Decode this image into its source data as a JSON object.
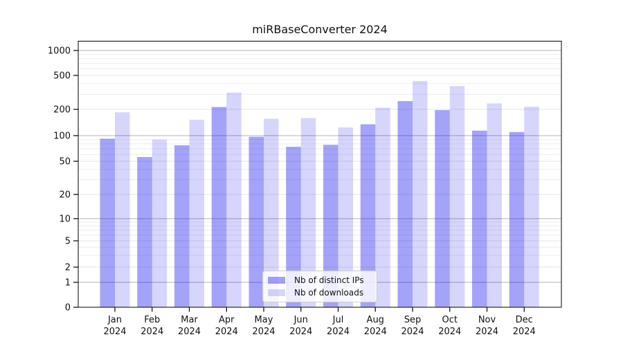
{
  "chart_data": {
    "type": "bar",
    "title": "miRBaseConverter 2024",
    "months": [
      "Jan",
      "Feb",
      "Mar",
      "Apr",
      "May",
      "Jun",
      "Jul",
      "Aug",
      "Sep",
      "Oct",
      "Nov",
      "Dec"
    ],
    "year": "2024",
    "categories": [
      "Jan 2024",
      "Feb 2024",
      "Mar 2024",
      "Apr 2024",
      "May 2024",
      "Jun 2024",
      "Jul 2024",
      "Aug 2024",
      "Sep 2024",
      "Oct 2024",
      "Nov 2024",
      "Dec 2024"
    ],
    "series": [
      {
        "name": "Nb of distinct IPs",
        "color": "#0000ee",
        "alpha": 0.36,
        "apparent_color": "#a3a3f9",
        "values": [
          92,
          56,
          77,
          213,
          97,
          74,
          78,
          135,
          250,
          196,
          114,
          110
        ]
      },
      {
        "name": "Nb of downloads",
        "color": "#0000ee",
        "alpha": 0.16,
        "apparent_color": "#d6d6fc",
        "values": [
          185,
          90,
          152,
          315,
          156,
          159,
          124,
          209,
          430,
          375,
          235,
          215
        ]
      }
    ],
    "y_ticks": [
      0,
      1,
      2,
      5,
      10,
      20,
      50,
      100,
      200,
      500,
      1000
    ],
    "yscale": "symlog",
    "ylim": [
      0,
      1300
    ],
    "grid": "horizontal, major and minor",
    "legend_position": "lower center",
    "major_grid_color": "#b0b0b0",
    "minor_grid_color": "#ececf1"
  }
}
